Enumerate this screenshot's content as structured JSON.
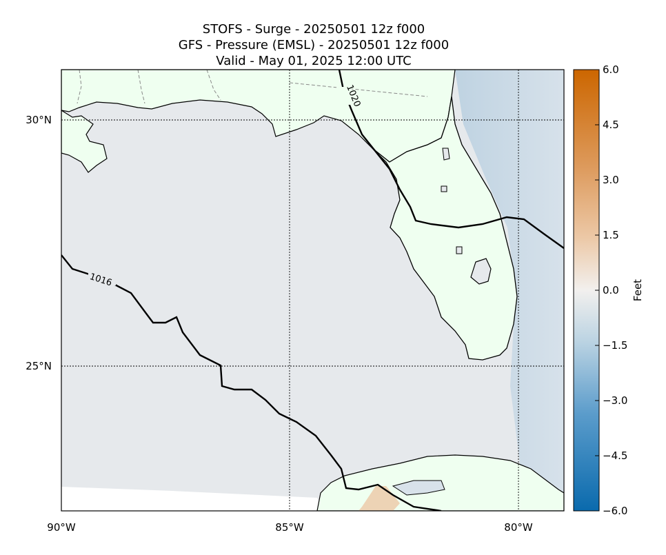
{
  "title": {
    "line1": "STOFS - Surge - 20250501 12z f000",
    "line2": "GFS -  Pressure (EMSL) - 20250501 12z f000",
    "line3": "Valid - May 01, 2025 12:00 UTC"
  },
  "axes": {
    "lat_labels": [
      "30°N",
      "25°N"
    ],
    "lon_labels": [
      "90°W",
      "85°W",
      "80°W"
    ]
  },
  "contours": {
    "labels": [
      "1020",
      "1016"
    ]
  },
  "colorbar": {
    "label": "Feet",
    "ticks": [
      "6.0",
      "4.5",
      "3.0",
      "1.5",
      "0.0",
      "−1.5",
      "−3.0",
      "−4.5",
      "−6.0"
    ],
    "range": [
      -6.0,
      6.0
    ],
    "colors": {
      "high": "#cc6600",
      "mid": "#f2f0ee",
      "low": "#0a6aad"
    }
  },
  "colors": {
    "land": "#effff0",
    "ocean": "#e6e9ec",
    "frame": "#000000"
  }
}
